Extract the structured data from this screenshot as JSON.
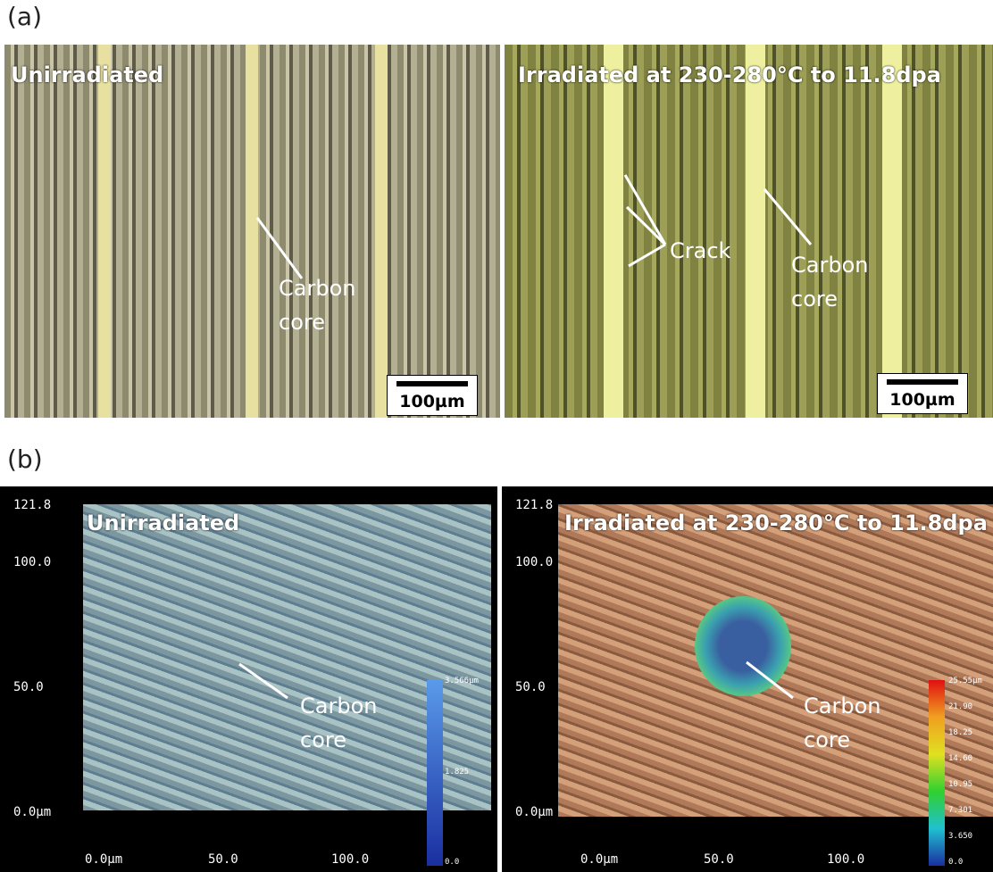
{
  "panel_a": {
    "label": "(a)",
    "left": {
      "title": "Unirradiated",
      "annotation": "Carbon core",
      "scale_bar": "100µm"
    },
    "right": {
      "title": "Irradiated at 230-280°C to 11.8dpa",
      "crack": "Crack",
      "annotation": "Carbon core",
      "scale_bar": "100µm"
    }
  },
  "panel_b": {
    "label": "(b)",
    "left": {
      "title": "Unirradiated",
      "annotation": "Carbon core",
      "y_ticks": [
        "121.8",
        "100.0",
        "50.0",
        "0.0µm"
      ],
      "x_ticks": [
        "0.0µm",
        "50.0",
        "100.0"
      ],
      "colorbar": [
        "3.566µm",
        "1.825",
        "0.0"
      ]
    },
    "right": {
      "title": "Irradiated at 230-280°C to 11.8dpa",
      "annotation": "Carbon core",
      "y_ticks": [
        "121.8",
        "100.0",
        "50.0",
        "0.0µm"
      ],
      "x_ticks": [
        "0.0µm",
        "50.0",
        "100.0"
      ],
      "colorbar": [
        "25.55µm",
        "21.90",
        "18.25",
        "14.60",
        "10.95",
        "7.301",
        "3.650",
        "0.0"
      ]
    }
  }
}
